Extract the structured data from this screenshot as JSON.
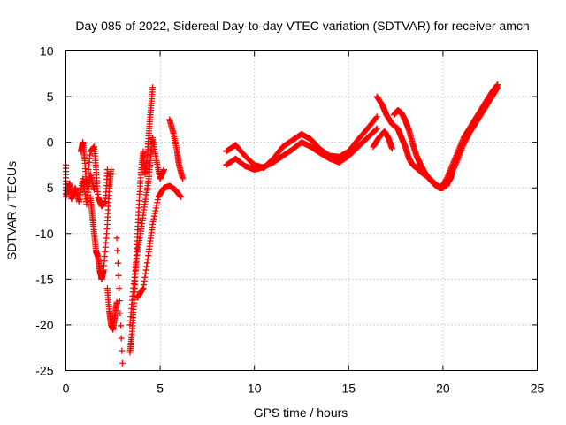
{
  "chart_data": {
    "type": "scatter",
    "title": "Day 085 of 2022, Sidereal Day-to-day VTEC variation (SDTVAR) for receiver amcn",
    "xlabel": "GPS time / hours",
    "ylabel": "SDTVAR / TECUs",
    "xlim": [
      0,
      25
    ],
    "ylim": [
      -25,
      10
    ],
    "xticks": [
      0,
      5,
      10,
      15,
      20,
      25
    ],
    "yticks": [
      -25,
      -20,
      -15,
      -10,
      -5,
      0,
      5,
      10
    ],
    "grid": true,
    "marker": "+",
    "series": [
      {
        "name": "SDTVAR",
        "color": "#ff0000",
        "tracks": [
          [
            [
              0.0,
              -2.5
            ],
            [
              0.0,
              -6.0
            ],
            [
              0.2,
              -4.5
            ],
            [
              0.3,
              -6.2
            ],
            [
              0.5,
              -5.0
            ],
            [
              0.7,
              -6.5
            ],
            [
              0.9,
              -4.0
            ],
            [
              1.1,
              -6.8
            ],
            [
              1.3,
              -3.5
            ],
            [
              1.5,
              -5.2
            ]
          ],
          [
            [
              0.8,
              -1.0
            ],
            [
              0.9,
              0.0
            ],
            [
              1.0,
              -2.0
            ],
            [
              1.1,
              -5.0
            ],
            [
              1.3,
              -1.0
            ],
            [
              1.5,
              -0.5
            ],
            [
              1.6,
              -3.0
            ],
            [
              1.7,
              -6.0
            ],
            [
              1.9,
              -7.0
            ],
            [
              2.1,
              -6.5
            ],
            [
              2.2,
              -3.0
            ]
          ],
          [
            [
              1.3,
              -6.0
            ],
            [
              1.4,
              -8.0
            ],
            [
              1.5,
              -10.0
            ],
            [
              1.6,
              -12.0
            ],
            [
              1.7,
              -12.5
            ],
            [
              1.8,
              -14.0
            ],
            [
              1.9,
              -15.0
            ],
            [
              2.0,
              -14.0
            ],
            [
              2.2,
              -9.0
            ],
            [
              2.3,
              -5.0
            ],
            [
              2.4,
              -3.0
            ]
          ],
          [
            [
              2.2,
              -16.0
            ],
            [
              2.3,
              -18.5
            ],
            [
              2.4,
              -20.0
            ],
            [
              2.5,
              -20.5
            ],
            [
              2.6,
              -19.0
            ],
            [
              2.7,
              -17.5
            ]
          ],
          [
            [
              2.7,
              -10.5
            ],
            [
              3.0,
              -24.2
            ]
          ],
          [
            [
              3.4,
              -23.0
            ],
            [
              3.5,
              -21.0
            ],
            [
              3.6,
              -18.0
            ],
            [
              3.7,
              -14.0
            ],
            [
              3.8,
              -10.0
            ],
            [
              3.9,
              -6.0
            ],
            [
              4.0,
              -3.0
            ],
            [
              4.1,
              -1.0
            ],
            [
              4.2,
              -3.5
            ],
            [
              4.3,
              -2.0
            ],
            [
              4.4,
              1.0
            ],
            [
              4.5,
              3.5
            ],
            [
              4.6,
              6.0
            ]
          ],
          [
            [
              3.4,
              -20.0
            ],
            [
              3.6,
              -15.5
            ],
            [
              3.8,
              -12.0
            ],
            [
              4.0,
              -9.5
            ],
            [
              4.2,
              -6.5
            ],
            [
              4.4,
              -4.0
            ],
            [
              4.5,
              -1.5
            ],
            [
              4.6,
              0.5
            ],
            [
              4.8,
              -2.0
            ],
            [
              5.0,
              -4.0
            ],
            [
              5.2,
              -3.0
            ]
          ],
          [
            [
              3.8,
              -17.0
            ],
            [
              4.1,
              -16.0
            ],
            [
              4.4,
              -12.0
            ],
            [
              4.6,
              -9.0
            ],
            [
              4.9,
              -6.0
            ],
            [
              5.2,
              -5.0
            ],
            [
              5.5,
              -4.8
            ],
            [
              5.8,
              -5.2
            ],
            [
              6.1,
              -6.0
            ]
          ],
          [
            [
              5.5,
              2.5
            ],
            [
              5.7,
              1.0
            ],
            [
              5.9,
              -1.0
            ],
            [
              6.0,
              -2.5
            ],
            [
              6.2,
              -4.0
            ]
          ],
          [
            [
              8.5,
              -1.0
            ],
            [
              9.0,
              -0.3
            ],
            [
              9.5,
              -1.5
            ],
            [
              10.0,
              -2.5
            ],
            [
              10.5,
              -2.8
            ],
            [
              11.0,
              -1.8
            ],
            [
              11.5,
              -0.5
            ],
            [
              12.0,
              0.2
            ],
            [
              12.5,
              0.9
            ],
            [
              13.0,
              0.3
            ],
            [
              13.5,
              -0.8
            ],
            [
              14.0,
              -1.5
            ],
            [
              14.5,
              -1.6
            ],
            [
              15.0,
              -1.0
            ],
            [
              15.5,
              0.3
            ],
            [
              16.0,
              1.5
            ],
            [
              16.5,
              2.8
            ]
          ],
          [
            [
              8.5,
              -2.5
            ],
            [
              9.0,
              -1.8
            ],
            [
              9.5,
              -2.6
            ],
            [
              10.0,
              -3.0
            ],
            [
              10.5,
              -2.7
            ],
            [
              11.0,
              -2.2
            ],
            [
              11.5,
              -1.5
            ],
            [
              12.0,
              -0.8
            ],
            [
              12.5,
              0.0
            ],
            [
              13.0,
              -0.5
            ],
            [
              13.5,
              -1.2
            ],
            [
              14.0,
              -1.8
            ],
            [
              14.5,
              -2.2
            ],
            [
              15.0,
              -1.5
            ],
            [
              15.5,
              -0.5
            ],
            [
              16.0,
              0.5
            ],
            [
              16.5,
              1.5
            ]
          ],
          [
            [
              16.3,
              -0.5
            ],
            [
              16.6,
              0.5
            ],
            [
              16.9,
              1.2
            ],
            [
              17.1,
              0.5
            ],
            [
              17.3,
              -0.7
            ]
          ],
          [
            [
              16.5,
              5.0
            ],
            [
              16.8,
              4.0
            ],
            [
              17.0,
              3.0
            ],
            [
              17.3,
              2.0
            ],
            [
              17.6,
              1.5
            ],
            [
              17.8,
              0.5
            ],
            [
              18.0,
              -0.5
            ],
            [
              18.2,
              -1.8
            ],
            [
              18.4,
              -2.5
            ],
            [
              18.6,
              -2.8
            ],
            [
              18.8,
              -3.2
            ],
            [
              19.0,
              -3.5
            ],
            [
              19.2,
              -3.8
            ],
            [
              19.4,
              -4.2
            ],
            [
              19.6,
              -4.6
            ],
            [
              19.8,
              -4.9
            ],
            [
              20.0,
              -4.8
            ]
          ],
          [
            [
              17.4,
              3.0
            ],
            [
              17.6,
              3.5
            ],
            [
              17.8,
              3.2
            ],
            [
              18.0,
              2.4
            ],
            [
              18.2,
              1.3
            ],
            [
              18.4,
              -0.2
            ],
            [
              18.6,
              -1.5
            ],
            [
              18.8,
              -2.4
            ],
            [
              19.0,
              -3.2
            ],
            [
              19.2,
              -3.8
            ],
            [
              19.4,
              -4.3
            ],
            [
              19.6,
              -4.7
            ],
            [
              19.8,
              -5.0
            ],
            [
              20.0,
              -5.0
            ],
            [
              20.2,
              -4.6
            ],
            [
              20.4,
              -4.0
            ],
            [
              20.5,
              -3.2
            ]
          ],
          [
            [
              19.9,
              -5.0
            ],
            [
              20.2,
              -4.0
            ],
            [
              20.5,
              -2.5
            ],
            [
              20.8,
              -1.0
            ],
            [
              21.1,
              0.5
            ],
            [
              21.4,
              1.5
            ],
            [
              21.7,
              2.5
            ],
            [
              22.0,
              3.5
            ],
            [
              22.3,
              4.5
            ],
            [
              22.6,
              5.5
            ],
            [
              22.9,
              6.3
            ]
          ],
          [
            [
              20.2,
              -4.8
            ],
            [
              20.5,
              -3.2
            ],
            [
              20.8,
              -1.8
            ],
            [
              21.1,
              -0.2
            ],
            [
              21.4,
              1.0
            ],
            [
              21.7,
              2.0
            ],
            [
              22.0,
              3.0
            ],
            [
              22.3,
              4.0
            ],
            [
              22.6,
              5.0
            ],
            [
              22.9,
              6.0
            ]
          ]
        ]
      }
    ]
  }
}
